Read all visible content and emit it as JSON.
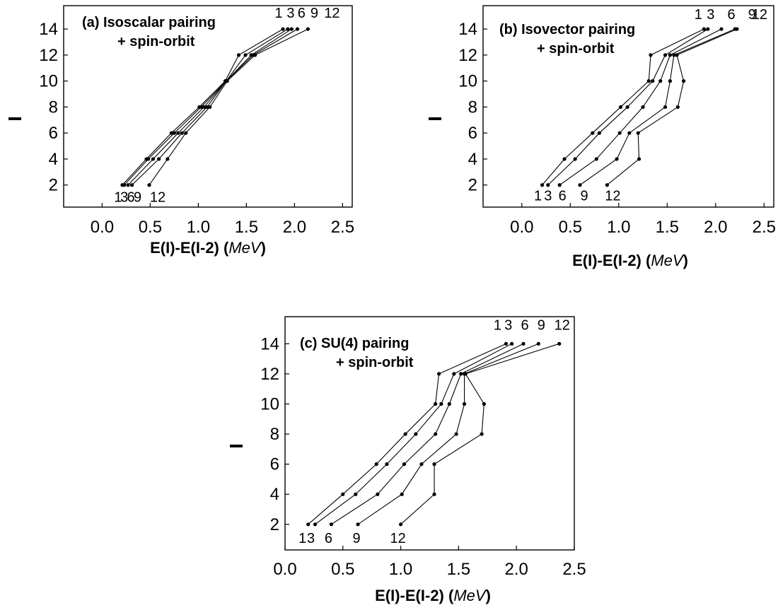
{
  "chart_data": [
    {
      "type": "line",
      "panel": "a",
      "title_line1": "(a)  Isoscalar pairing",
      "title_line2": "+ spin-orbit",
      "xlabel_main": "E(I)-E(I-2) (",
      "xlabel_unit": "MeV",
      "xlabel_end": ")",
      "ylabel": "I",
      "xlim": [
        -0.4,
        2.6
      ],
      "ylim": [
        0.3,
        15.8
      ],
      "xticks": [
        "0.0",
        "0.5",
        "1.0",
        "1.5",
        "2.0",
        "2.5"
      ],
      "yticks": [
        "2",
        "4",
        "6",
        "8",
        "10",
        "12",
        "14"
      ],
      "y": [
        2,
        4,
        6,
        8,
        10,
        12,
        14
      ],
      "series": [
        {
          "name": "1",
          "values": [
            0.21,
            0.46,
            0.72,
            1.01,
            1.28,
            1.42,
            1.88
          ]
        },
        {
          "name": "3",
          "values": [
            0.23,
            0.48,
            0.75,
            1.03,
            1.29,
            1.49,
            1.93
          ]
        },
        {
          "name": "6",
          "values": [
            0.27,
            0.53,
            0.79,
            1.06,
            1.29,
            1.55,
            1.97
          ]
        },
        {
          "name": "9",
          "values": [
            0.31,
            0.59,
            0.83,
            1.09,
            1.29,
            1.57,
            2.03
          ]
        },
        {
          "name": "12",
          "values": [
            0.49,
            0.68,
            0.87,
            1.12,
            1.3,
            1.59,
            2.14
          ]
        }
      ],
      "bottom_labels": [
        "1",
        "3",
        "6",
        "9",
        "12"
      ],
      "top_labels": [
        "1",
        "3",
        "6",
        "9",
        "12"
      ]
    },
    {
      "type": "line",
      "panel": "b",
      "title_line1": "(b) Isovector pairing",
      "title_line2": "+ spin-orbit",
      "xlabel_main": "E(I)-E(I-2) (",
      "xlabel_unit": "MeV",
      "xlabel_end": ")",
      "ylabel": "I",
      "xlim": [
        -0.4,
        2.6
      ],
      "ylim": [
        0.3,
        15.8
      ],
      "xticks": [
        "0.0",
        "0.5",
        "1.0",
        "1.5",
        "2.0",
        "2.5"
      ],
      "yticks": [
        "2",
        "4",
        "6",
        "8",
        "10",
        "12",
        "14"
      ],
      "y": [
        2,
        4,
        6,
        8,
        10,
        12,
        14
      ],
      "series": [
        {
          "name": "1",
          "values": [
            0.21,
            0.44,
            0.73,
            1.02,
            1.31,
            1.33,
            1.88
          ]
        },
        {
          "name": "3",
          "values": [
            0.27,
            0.55,
            0.8,
            1.09,
            1.35,
            1.48,
            1.92
          ]
        },
        {
          "name": "6",
          "values": [
            0.39,
            0.77,
            1.01,
            1.25,
            1.43,
            1.53,
            2.06
          ]
        },
        {
          "name": "9",
          "values": [
            0.6,
            0.98,
            1.11,
            1.48,
            1.53,
            1.57,
            2.2
          ]
        },
        {
          "name": "12",
          "values": [
            0.88,
            1.21,
            1.2,
            1.61,
            1.67,
            1.6,
            2.22
          ]
        }
      ],
      "bottom_labels": [
        "1",
        "3",
        "6",
        "9",
        "12"
      ],
      "top_labels": [
        "1",
        "3",
        "6",
        "9",
        "12"
      ]
    },
    {
      "type": "line",
      "panel": "c",
      "title_line1": "(c) SU(4) pairing",
      "title_line2": "+ spin-orbit",
      "xlabel_main": "E(I)-E(I-2) (",
      "xlabel_unit": "MeV",
      "xlabel_end": ")",
      "ylabel": "I",
      "xlim": [
        0.0,
        2.5
      ],
      "ylim": [
        0.3,
        15.8
      ],
      "xticks": [
        "0.0",
        "0.5",
        "1.0",
        "1.5",
        "2.0",
        "2.5"
      ],
      "yticks": [
        "2",
        "4",
        "6",
        "8",
        "10",
        "12",
        "14"
      ],
      "y": [
        2,
        4,
        6,
        8,
        10,
        12,
        14
      ],
      "series": [
        {
          "name": "1",
          "values": [
            0.2,
            0.5,
            0.79,
            1.04,
            1.3,
            1.33,
            1.91
          ]
        },
        {
          "name": "3",
          "values": [
            0.26,
            0.61,
            0.88,
            1.13,
            1.35,
            1.46,
            1.96
          ]
        },
        {
          "name": "6",
          "values": [
            0.4,
            0.8,
            1.03,
            1.3,
            1.42,
            1.52,
            2.06
          ]
        },
        {
          "name": "9",
          "values": [
            0.63,
            1.01,
            1.18,
            1.48,
            1.55,
            1.55,
            2.19
          ]
        },
        {
          "name": "12",
          "values": [
            1.0,
            1.29,
            1.29,
            1.7,
            1.72,
            1.56,
            2.37
          ]
        }
      ],
      "bottom_labels": [
        "1",
        "3",
        "6",
        "9",
        "12"
      ],
      "top_labels": [
        "1",
        "3",
        "6",
        "9",
        "12"
      ]
    }
  ]
}
